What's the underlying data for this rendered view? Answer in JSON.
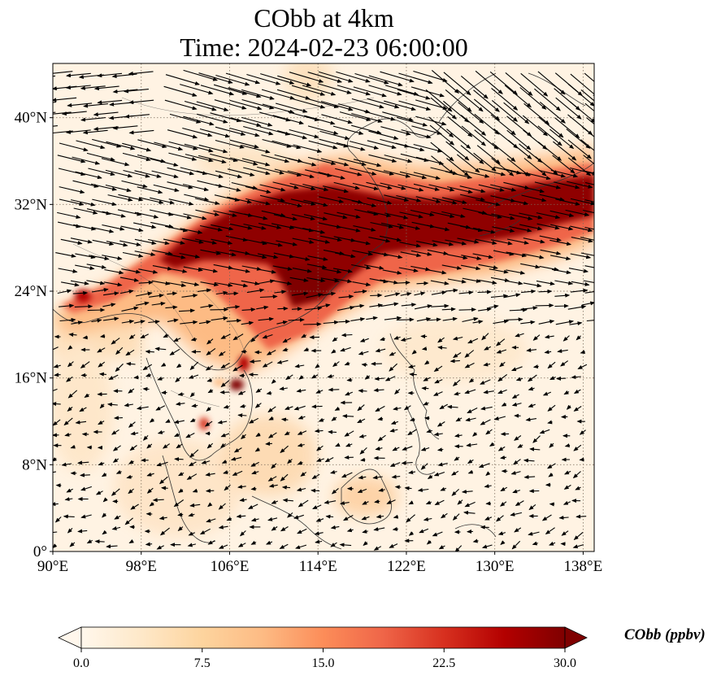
{
  "title": {
    "line1": "CObb at 4km",
    "line2": "Time: 2024-02-23 06:00:00"
  },
  "map": {
    "projection": "PlateCarree",
    "lon_range": [
      90,
      139
    ],
    "lat_range": [
      0,
      45
    ],
    "x_ticks": [
      {
        "value": 90,
        "label": "90°E"
      },
      {
        "value": 98,
        "label": "98°E"
      },
      {
        "value": 106,
        "label": "106°E"
      },
      {
        "value": 114,
        "label": "114°E"
      },
      {
        "value": 122,
        "label": "122°E"
      },
      {
        "value": 130,
        "label": "130°E"
      },
      {
        "value": 138,
        "label": "138°E"
      }
    ],
    "y_ticks": [
      {
        "value": 0,
        "label": "0°"
      },
      {
        "value": 8,
        "label": "8°N"
      },
      {
        "value": 16,
        "label": "16°N"
      },
      {
        "value": 24,
        "label": "24°N"
      },
      {
        "value": 32,
        "label": "32°N"
      },
      {
        "value": 40,
        "label": "40°N"
      }
    ],
    "gridlines": "dotted",
    "field": "CObb concentration (filled), wind vectors (quiver)",
    "plume_band": "high CObb band from ~91°E,22°N through 102–120°E,24–32°N to 139°E,34°N",
    "hotspots": [
      {
        "lon": 107.5,
        "lat": 17.5,
        "level": "high"
      },
      {
        "lon": 107.0,
        "lat": 15.5,
        "level": "max"
      },
      {
        "lon": 103.3,
        "lat": 11.5,
        "level": "high"
      },
      {
        "lon": 93.0,
        "lat": 23.5,
        "level": "high"
      }
    ]
  },
  "colorbar": {
    "colormap": "OrRd",
    "colors": [
      "#fff7ec",
      "#fee8c8",
      "#fdd49e",
      "#fdbb84",
      "#fc8d59",
      "#ef6548",
      "#d7301f",
      "#b30000",
      "#7f0000"
    ],
    "min": 0.0,
    "max": 30.0,
    "extend": "both",
    "ticks": [
      "0.0",
      "7.5",
      "15.0",
      "22.5",
      "30.0"
    ],
    "label": "CObb (ppbv)"
  }
}
